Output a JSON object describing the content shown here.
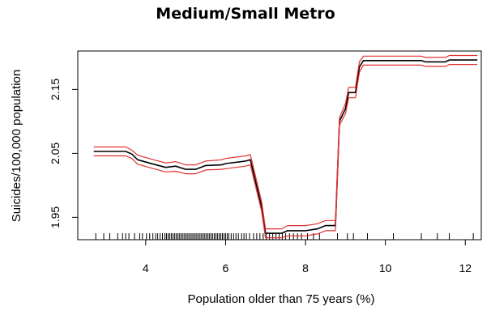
{
  "chart_data": {
    "type": "line",
    "title": "Medium/Small Metro",
    "xlabel": "Population older than 75 years (%)",
    "ylabel": "Suicides/100,000 population",
    "xlim": [
      2.3,
      12.4
    ],
    "ylim": [
      1.915,
      2.21
    ],
    "x_ticks": [
      4,
      6,
      8,
      10,
      12
    ],
    "x_tick_labels": [
      "4",
      "6",
      "8",
      "10",
      "12"
    ],
    "y_ticks": [
      1.95,
      2.05,
      2.15
    ],
    "y_tick_labels": [
      "1.95",
      "2.05",
      "2.15"
    ],
    "grid": false,
    "colors": {
      "estimate": "#000000",
      "bands": "#e03030"
    },
    "series": [
      {
        "role": "estimate",
        "x": [
          2.7,
          3.2,
          3.5,
          3.65,
          3.8,
          4.2,
          4.5,
          4.75,
          5.0,
          5.25,
          5.5,
          5.9,
          6.0,
          6.5,
          6.62,
          6.9,
          7.0,
          7.4,
          7.55,
          8.0,
          8.3,
          8.5,
          8.75,
          8.85,
          9.0,
          9.08,
          9.25,
          9.3,
          9.35,
          9.45,
          10.0,
          10.9,
          11.0,
          11.5,
          11.6,
          12.3
        ],
        "values": [
          2.053,
          2.053,
          2.053,
          2.049,
          2.04,
          2.033,
          2.028,
          2.03,
          2.025,
          2.025,
          2.031,
          2.032,
          2.034,
          2.038,
          2.04,
          1.967,
          1.925,
          1.925,
          1.929,
          1.929,
          1.932,
          1.937,
          1.937,
          2.1,
          2.12,
          2.145,
          2.145,
          2.165,
          2.185,
          2.195,
          2.195,
          2.195,
          2.193,
          2.193,
          2.196,
          2.196
        ]
      },
      {
        "role": "upper",
        "x": [
          2.7,
          3.2,
          3.5,
          3.65,
          3.8,
          4.2,
          4.5,
          4.75,
          5.0,
          5.25,
          5.5,
          5.9,
          6.0,
          6.5,
          6.62,
          6.9,
          7.0,
          7.4,
          7.55,
          8.0,
          8.3,
          8.5,
          8.75,
          8.85,
          9.0,
          9.08,
          9.25,
          9.3,
          9.35,
          9.45,
          10.0,
          10.9,
          11.0,
          11.5,
          11.6,
          12.3
        ],
        "values": [
          2.06,
          2.06,
          2.06,
          2.055,
          2.047,
          2.04,
          2.035,
          2.037,
          2.032,
          2.032,
          2.038,
          2.04,
          2.042,
          2.046,
          2.048,
          1.975,
          1.932,
          1.932,
          1.937,
          1.937,
          1.94,
          1.945,
          1.945,
          2.106,
          2.128,
          2.153,
          2.153,
          2.173,
          2.193,
          2.202,
          2.202,
          2.202,
          2.2,
          2.2,
          2.203,
          2.203
        ]
      },
      {
        "role": "lower",
        "x": [
          2.7,
          3.2,
          3.5,
          3.65,
          3.8,
          4.2,
          4.5,
          4.75,
          5.0,
          5.25,
          5.5,
          5.9,
          6.0,
          6.5,
          6.62,
          6.9,
          7.0,
          7.4,
          7.55,
          8.0,
          8.3,
          8.5,
          8.75,
          8.85,
          9.0,
          9.08,
          9.25,
          9.3,
          9.35,
          9.45,
          10.0,
          10.9,
          11.0,
          11.5,
          11.6,
          12.3
        ],
        "values": [
          2.046,
          2.046,
          2.046,
          2.042,
          2.033,
          2.026,
          2.021,
          2.022,
          2.018,
          2.018,
          2.024,
          2.025,
          2.026,
          2.03,
          2.032,
          1.96,
          1.918,
          1.918,
          1.921,
          1.921,
          1.924,
          1.929,
          1.929,
          2.094,
          2.112,
          2.137,
          2.137,
          2.157,
          2.177,
          2.188,
          2.188,
          2.188,
          2.186,
          2.186,
          2.189,
          2.189
        ]
      }
    ],
    "rug": [
      2.75,
      2.95,
      3.1,
      3.3,
      3.42,
      3.5,
      3.58,
      3.72,
      3.85,
      3.92,
      4.02,
      4.1,
      4.18,
      4.25,
      4.3,
      4.36,
      4.42,
      4.48,
      4.52,
      4.56,
      4.6,
      4.64,
      4.68,
      4.72,
      4.76,
      4.8,
      4.84,
      4.88,
      4.92,
      4.96,
      5.0,
      5.04,
      5.08,
      5.12,
      5.16,
      5.2,
      5.24,
      5.28,
      5.32,
      5.36,
      5.4,
      5.44,
      5.48,
      5.52,
      5.56,
      5.6,
      5.64,
      5.68,
      5.72,
      5.76,
      5.8,
      5.84,
      5.88,
      5.92,
      5.96,
      6.0,
      6.04,
      6.08,
      6.14,
      6.2,
      6.26,
      6.32,
      6.4,
      6.46,
      6.52,
      6.6,
      6.7,
      6.78,
      6.86,
      6.94,
      7.02,
      7.1,
      7.18,
      7.26,
      7.34,
      7.42,
      7.5,
      7.6,
      7.7,
      7.8,
      7.9,
      8.05,
      8.2,
      8.35,
      8.8,
      9.05,
      9.2,
      9.55,
      10.2,
      10.9,
      11.3,
      11.6,
      12.2
    ]
  }
}
